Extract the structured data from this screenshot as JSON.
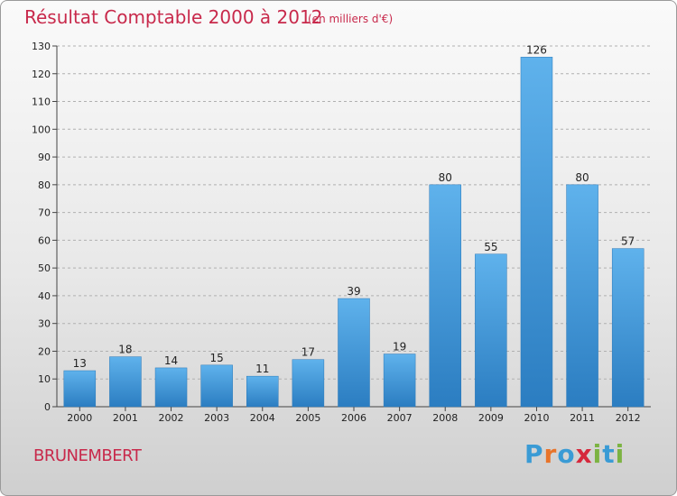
{
  "header": {
    "title": "Résultat Comptable 2000 à 2012",
    "subtitle": "(en milliers d'€)"
  },
  "footer": {
    "commune": "BRUNEMBERT",
    "logo_letters": [
      "P",
      "r",
      "o",
      "x",
      "i",
      "t",
      "i"
    ],
    "logo_colors": [
      "#3a9bd5",
      "#e8742a",
      "#3a9bd5",
      "#d6283c",
      "#7cb342",
      "#3a9bd5",
      "#7cb342"
    ]
  },
  "chart_data": {
    "type": "bar",
    "categories": [
      "2000",
      "2001",
      "2002",
      "2003",
      "2004",
      "2005",
      "2006",
      "2007",
      "2008",
      "2009",
      "2010",
      "2011",
      "2012"
    ],
    "values": [
      13,
      18,
      14,
      15,
      11,
      17,
      39,
      19,
      80,
      55,
      126,
      80,
      57
    ],
    "data_labels": [
      "13",
      "18",
      "14",
      "15",
      "11",
      "17",
      "39",
      "19",
      "80",
      "55",
      "126",
      "80",
      "57"
    ],
    "yticks": [
      "0",
      "10",
      "20",
      "30",
      "40",
      "50",
      "60",
      "70",
      "80",
      "90",
      "100",
      "110",
      "120",
      "130"
    ],
    "ylim": [
      0,
      130
    ],
    "grid": "horizontal-dashed",
    "bar_color": "#4aa0e0",
    "bar_color_dark": "#2a7ec0"
  }
}
